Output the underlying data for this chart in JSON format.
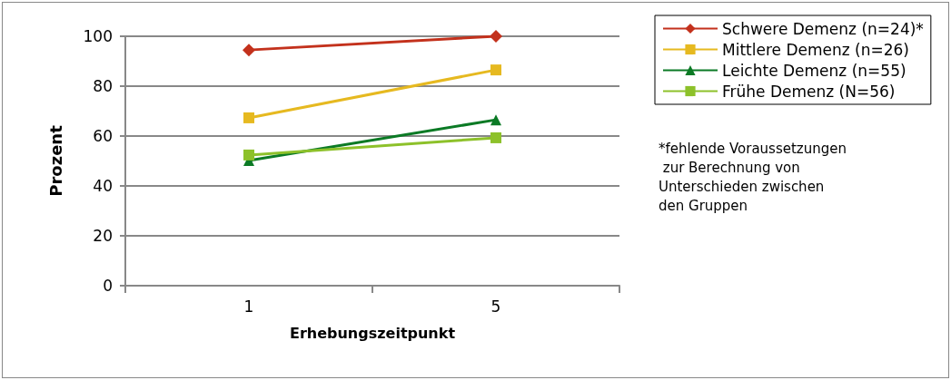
{
  "chart_data": {
    "type": "line",
    "xlabel": "Erhebungszeitpunkt",
    "ylabel": "Prozent",
    "categories": [
      "1",
      "5"
    ],
    "series": [
      {
        "name": "Schwere Demenz (n=24)*",
        "color": "#c3311c",
        "marker": "diamond",
        "values": [
          94.5,
          100
        ]
      },
      {
        "name": "Mittlere Demenz (n=26)",
        "color": "#e6b920",
        "marker": "square",
        "values": [
          67.3,
          86.5
        ]
      },
      {
        "name": "Leichte Demenz (n=55)",
        "color": "#0b7a25",
        "marker": "triangle",
        "values": [
          50.2,
          66.5
        ]
      },
      {
        "name": "Frühe Demenz (N=56)",
        "color": "#8dc12a",
        "marker": "square",
        "values": [
          52.4,
          59.3
        ]
      }
    ],
    "ylim": [
      0,
      100
    ],
    "yticks": [
      0,
      20,
      40,
      60,
      80,
      100
    ],
    "grid": "y",
    "legend": "right",
    "line_style": "solid",
    "annotations": [
      "*fehlende Voraussetzungen zur Berechnung von Unterschieden zwischen den Gruppen"
    ]
  }
}
